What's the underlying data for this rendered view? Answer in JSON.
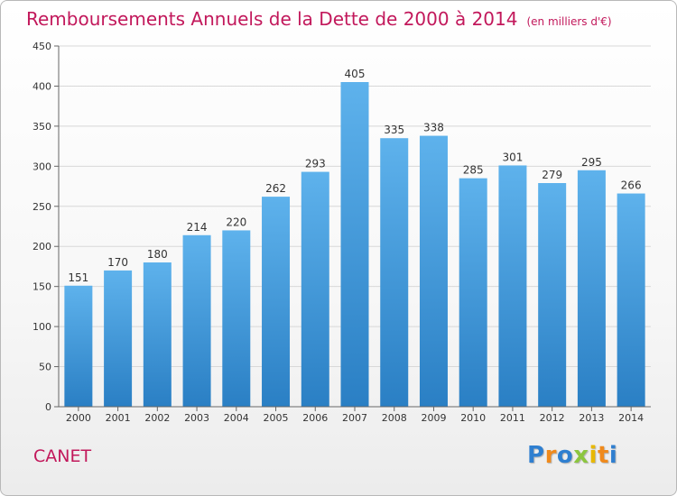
{
  "chart_data": {
    "type": "bar",
    "title": "Remboursements Annuels de la Dette de 2000 à 2014",
    "unit_note": "(en milliers d'€)",
    "categories": [
      "2000",
      "2001",
      "2002",
      "2003",
      "2004",
      "2005",
      "2006",
      "2007",
      "2008",
      "2009",
      "2010",
      "2011",
      "2012",
      "2013",
      "2014"
    ],
    "values": [
      151,
      170,
      180,
      214,
      220,
      262,
      293,
      405,
      335,
      338,
      285,
      301,
      279,
      295,
      266
    ],
    "ylim": [
      0,
      450
    ],
    "yticks": [
      0,
      50,
      100,
      150,
      200,
      250,
      300,
      350,
      400,
      450
    ],
    "grid": true,
    "bar_color_top": "#5eb2ec",
    "bar_color_bottom": "#2a7fc4"
  },
  "footer": {
    "city": "CANET",
    "logo_letters": [
      "P",
      "r",
      "o",
      "x",
      "i",
      "t",
      "i"
    ],
    "logo_colors": [
      "#2f7fd0",
      "#f08a1c",
      "#2f7fd0",
      "#8cc63f",
      "#e8b800",
      "#f08a1c",
      "#2f7fd0"
    ]
  }
}
